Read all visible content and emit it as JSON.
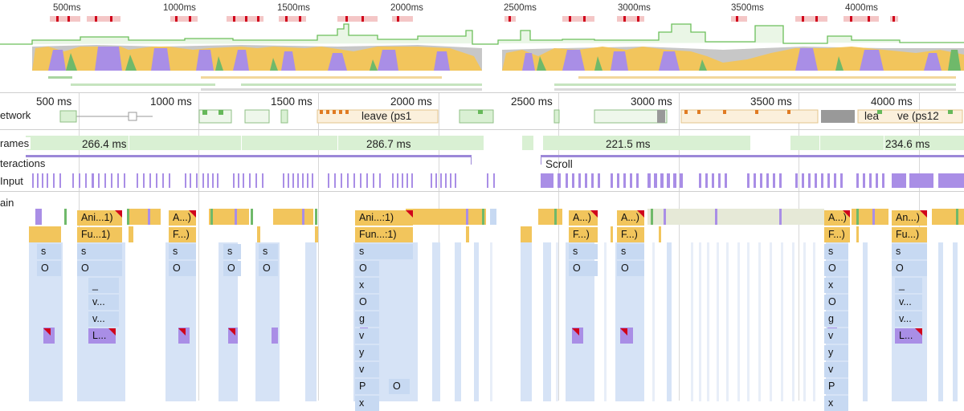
{
  "overview": {
    "ticks": [
      "500ms",
      "1000ms",
      "1500ms",
      "2000ms",
      "2500ms",
      "3000ms",
      "3500ms",
      "4000ms"
    ]
  },
  "ruler": {
    "ticks": [
      "500 ms",
      "1000 ms",
      "1500 ms",
      "2000 ms",
      "2500 ms",
      "3000 ms",
      "3500 ms",
      "4000 ms"
    ]
  },
  "tracks": {
    "network": "etwork",
    "frames": "rames",
    "interactions": "teractions",
    "input": "Input",
    "main": "ain"
  },
  "network_labels": [
    "leave (ps1",
    "lea",
    "ve (ps12"
  ],
  "frames": {
    "durations": [
      "266.4 ms",
      "286.7 ms",
      "221.5 ms",
      "234.6 ms"
    ]
  },
  "interactions": {
    "scroll": "Scroll"
  },
  "main": {
    "row1": [
      "Ani...1)",
      "A...)",
      "Ani...:1)",
      "A...)",
      "A...)",
      "A...)",
      "An...)"
    ],
    "row2": [
      "Fu...1)",
      "F...)",
      "Fun...:1)",
      "F...)",
      "F...)",
      "F...)",
      "Fu...)"
    ],
    "col1": [
      "s",
      "O"
    ],
    "col2": [
      "s",
      "O",
      "_",
      "v...",
      "v...",
      "L..."
    ],
    "col3": [
      "s",
      "O"
    ],
    "col4": [
      "s",
      "O"
    ],
    "col5": [
      "s",
      "O"
    ],
    "col6": [
      "s",
      "O",
      "x",
      "O",
      "g",
      "v",
      "y",
      "v",
      "P",
      "x"
    ],
    "col6_extra": "O",
    "col7": [
      "s",
      "O"
    ],
    "col8": [
      "s",
      "O"
    ],
    "col9": [
      "s",
      "O",
      "x",
      "O",
      "g",
      "v",
      "y",
      "v",
      "P",
      "x"
    ],
    "col10": [
      "s",
      "O",
      "_",
      "v...",
      "v...",
      "L..."
    ]
  },
  "colors": {
    "scripting": "#f2c55c",
    "rendering": "#a98ee6",
    "painting": "#6fb96a",
    "idle": "#c7c7c7",
    "frame": "#d9f0d3",
    "callstack": "#c7d9f2",
    "long_task": "#d0021b"
  }
}
